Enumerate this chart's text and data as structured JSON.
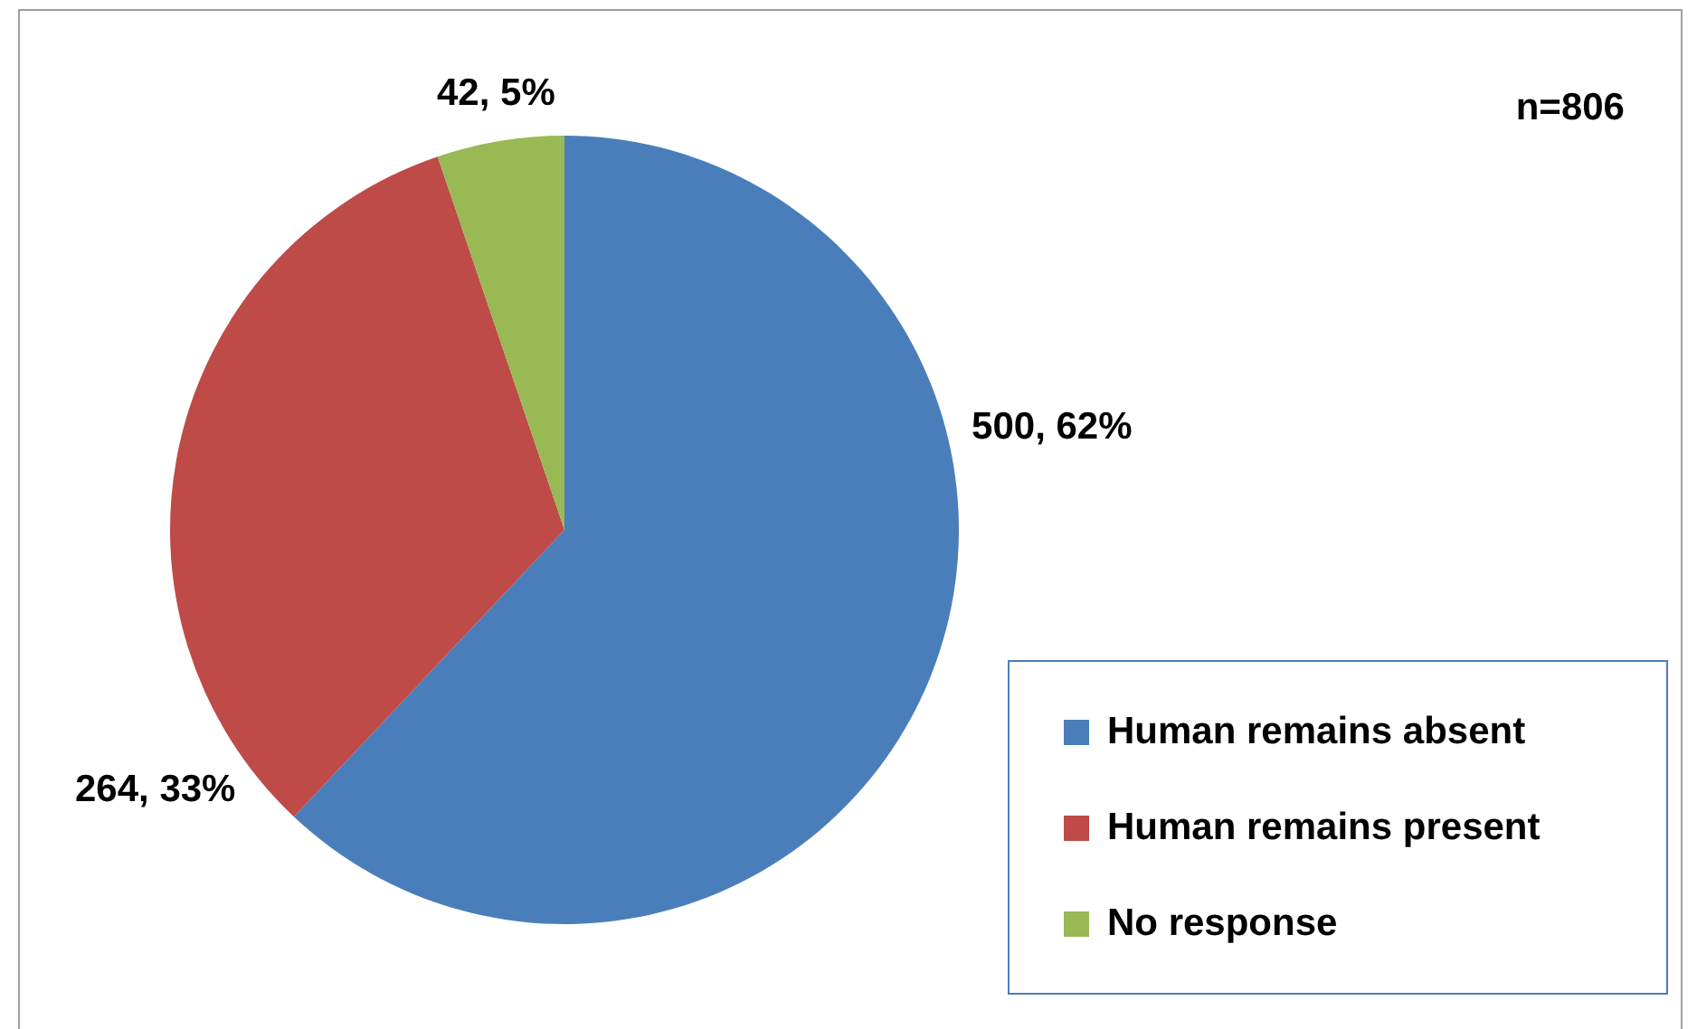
{
  "chart_data": {
    "type": "pie",
    "categories": [
      "Human remains absent",
      "Human remains present",
      "No response"
    ],
    "values": [
      500,
      264,
      42
    ],
    "colors": [
      "#4a7ebb",
      "#be4b48",
      "#98b954"
    ],
    "value_labels": [
      "500, 62%",
      "264, 33%",
      "42, 5%"
    ],
    "annotations": [
      "n=806"
    ],
    "legend": "bottom right"
  }
}
